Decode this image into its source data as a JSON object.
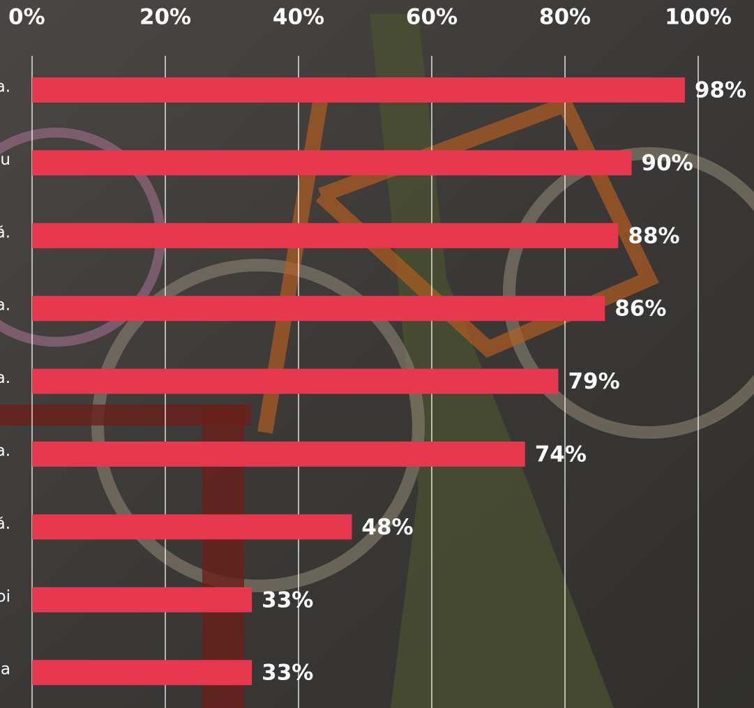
{
  "chart_data": {
    "type": "bar",
    "orientation": "horizontal",
    "categories": [
      "a.",
      "u",
      "ă.",
      "a.",
      "a.",
      "a.",
      "ă.",
      "oi",
      "a"
    ],
    "values": [
      98,
      90,
      88,
      86,
      79,
      74,
      48,
      33,
      33
    ],
    "value_labels": [
      "98%",
      "90%",
      "88%",
      "86%",
      "79%",
      "74%",
      "48%",
      "33%",
      "33%"
    ],
    "color": "#e8384f",
    "xlim": [
      0,
      100
    ],
    "xticks": [
      {
        "value": 0,
        "label": "0%"
      },
      {
        "value": 20,
        "label": "20%"
      },
      {
        "value": 40,
        "label": "40%"
      },
      {
        "value": 60,
        "label": "60%"
      },
      {
        "value": 80,
        "label": "80%"
      },
      {
        "value": 100,
        "label": "100%"
      }
    ],
    "grid": true
  }
}
